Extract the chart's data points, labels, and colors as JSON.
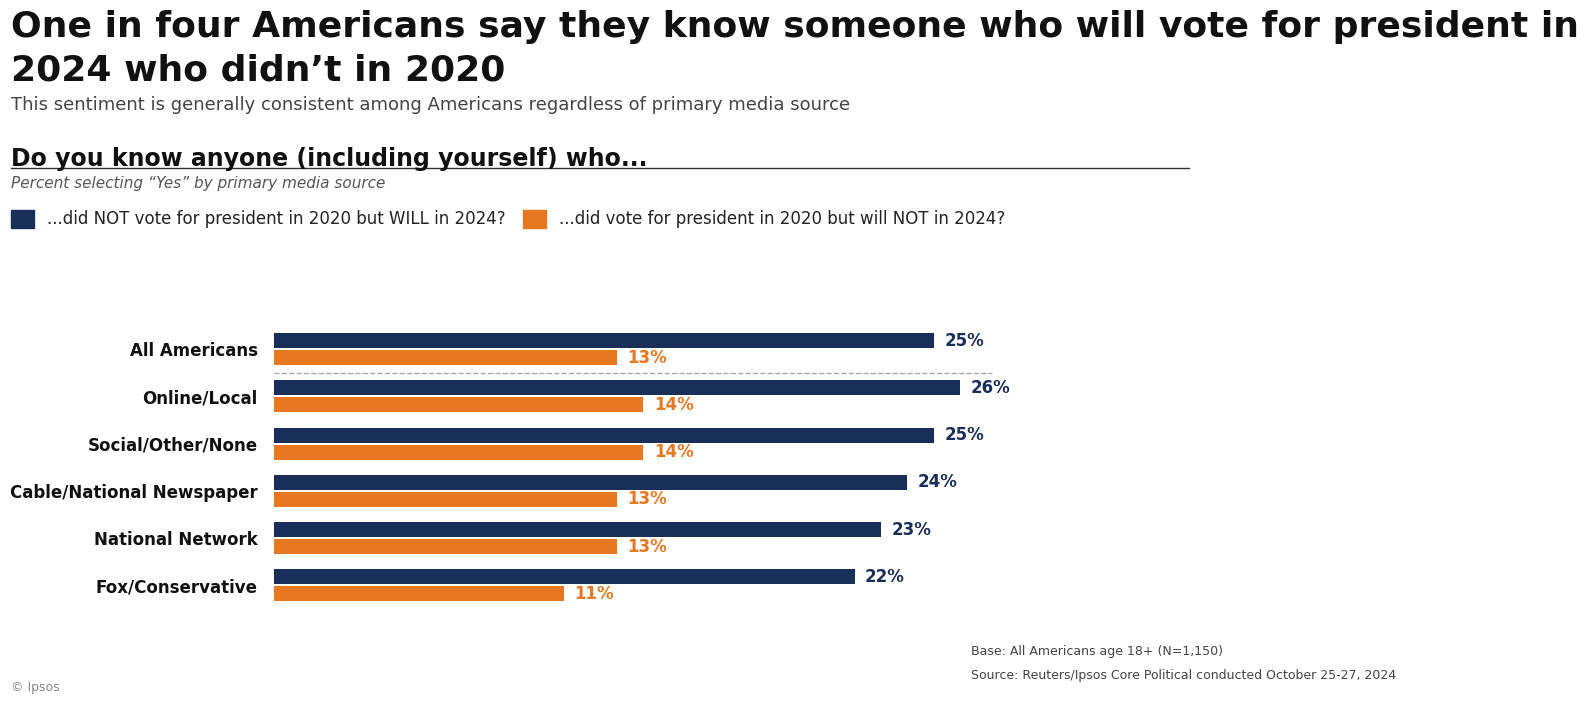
{
  "title_line1": "One in four Americans say they know someone who will vote for president in",
  "title_line2": "2024 who didn’t in 2020",
  "subtitle": "This sentiment is generally consistent among Americans regardless of primary media source",
  "section_title": "Do you know anyone (including yourself) who...",
  "section_subtitle": "Percent selecting “Yes” by primary media source",
  "legend_label1": "...did NOT vote for president in 2020 but WILL in 2024?",
  "legend_label2": "...did vote for president in 2020 but will NOT in 2024?",
  "categories": [
    "All Americans",
    "Online/Local",
    "Social/Other/None",
    "Cable/National Newspaper",
    "National Network",
    "Fox/Conservative"
  ],
  "blue_values": [
    25,
    26,
    25,
    24,
    23,
    22
  ],
  "orange_values": [
    13,
    14,
    14,
    13,
    13,
    11
  ],
  "blue_color": "#1a2e5a",
  "orange_color": "#e87722",
  "bar_height": 0.32,
  "xlim": [
    0,
    32
  ],
  "footnote1": "Base: All Americans age 18+ (N=1,150)",
  "footnote2": "Source: Reuters/Ipsos Core Political conducted October 25-27, 2024",
  "copyright": "© Ipsos",
  "background_color": "#ffffff",
  "title_fontsize": 26,
  "subtitle_fontsize": 13,
  "section_title_fontsize": 17,
  "section_subtitle_fontsize": 11,
  "label_fontsize": 12,
  "value_fontsize": 12,
  "legend_fontsize": 12
}
